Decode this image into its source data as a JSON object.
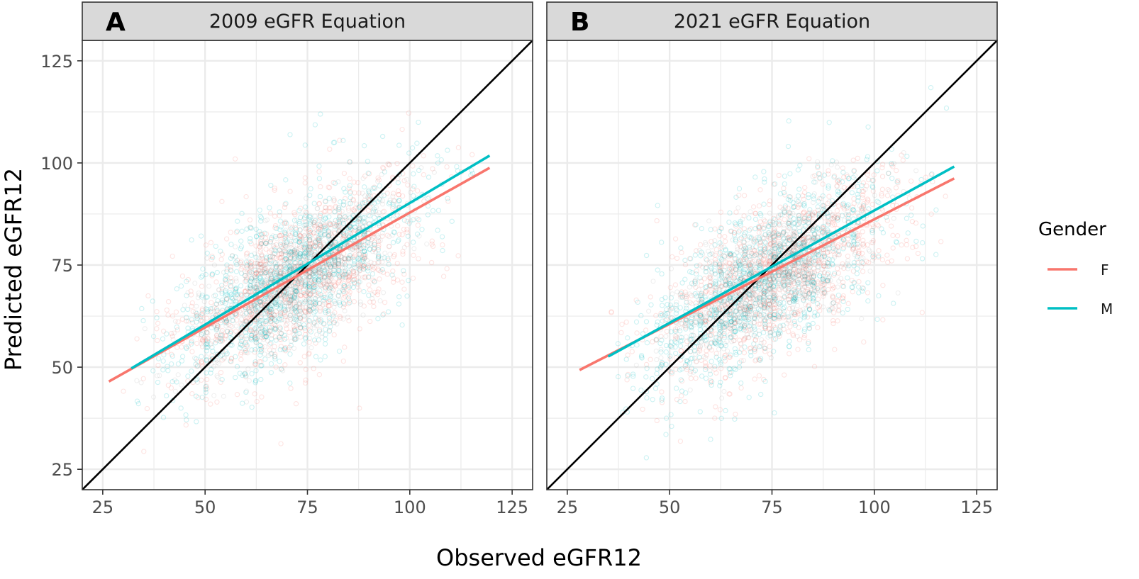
{
  "chart_data": {
    "type": "scatter",
    "xlabel": "Observed eGFR12",
    "ylabel": "Predicted eGFR12",
    "xlim": [
      20,
      130
    ],
    "ylim": [
      20,
      130
    ],
    "xticks": [
      25,
      50,
      75,
      100,
      125
    ],
    "yticks": [
      25,
      50,
      75,
      100,
      125
    ],
    "grid": true,
    "legend": {
      "title": "Gender",
      "position": "right",
      "entries": [
        {
          "label": "F",
          "color": "#F8766D"
        },
        {
          "label": "M",
          "color": "#00BFC4"
        }
      ]
    },
    "panels": [
      {
        "tag": "A",
        "title": "2009 eGFR Equation",
        "identity_line": {
          "from": [
            20,
            20
          ],
          "to": [
            130,
            130
          ],
          "color": "#000000"
        },
        "fit_lines": [
          {
            "name": "F",
            "x": [
              26.5,
              119.5
            ],
            "y": [
              46.5,
              98.8
            ]
          },
          {
            "name": "M",
            "x": [
              32,
              119.5
            ],
            "y": [
              49.7,
              101.8
            ]
          }
        ],
        "scatter_cloud": {
          "F": {
            "x_range": [
              30,
              120
            ],
            "slope": 0.53,
            "center": [
              73,
              72
            ]
          },
          "M": {
            "x_range": [
              33,
              120
            ],
            "slope": 0.6,
            "center": [
              72,
              72
            ]
          }
        }
      },
      {
        "tag": "B",
        "title": "2021 eGFR Equation",
        "identity_line": {
          "from": [
            20,
            20
          ],
          "to": [
            130,
            130
          ],
          "color": "#000000"
        },
        "fit_lines": [
          {
            "name": "F",
            "x": [
              28,
              119.5
            ],
            "y": [
              49.3,
              96.2
            ]
          },
          {
            "name": "M",
            "x": [
              35,
              119.5
            ],
            "y": [
              52.6,
              99.1
            ]
          }
        ],
        "scatter_cloud": {
          "F": {
            "x_range": [
              34,
              120
            ],
            "slope": 0.51,
            "center": [
              76,
              73
            ]
          },
          "M": {
            "x_range": [
              37,
              120
            ],
            "slope": 0.55,
            "center": [
              73,
              71
            ]
          }
        }
      }
    ]
  },
  "colors": {
    "F": "#F8766D",
    "M": "#00BFC4",
    "strip_bg": "#D9D9D9",
    "grid": "#EBEBEB",
    "frame": "#333333"
  }
}
